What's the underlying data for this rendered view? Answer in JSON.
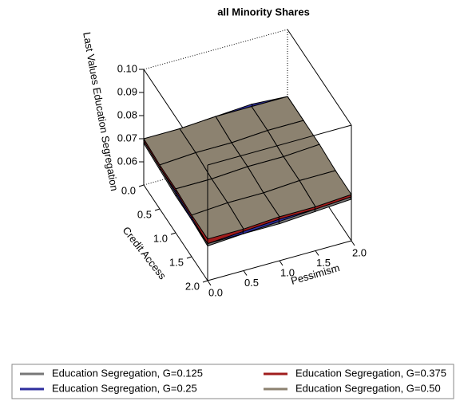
{
  "chart_data": {
    "type": "surface3d",
    "title": "all Minority Shares",
    "xlabel": "Pessimism",
    "ylabel": "Credit Access",
    "zlabel": "Last Values Education Segregation",
    "x": [
      0,
      0.5,
      1,
      1.5,
      2
    ],
    "y": [
      0,
      0.5,
      1,
      1.5,
      2
    ],
    "xlim": [
      0,
      2
    ],
    "ylim": [
      0,
      2
    ],
    "zlim": [
      0.05,
      0.1
    ],
    "xticks": [
      {
        "value": 0,
        "label": "0.0"
      },
      0.5,
      {
        "value": 1,
        "label": "1.0"
      },
      1.5,
      {
        "value": 2,
        "label": "2.0"
      }
    ],
    "yticks": [
      {
        "value": 0,
        "label": "0.0"
      },
      0.5,
      {
        "value": 1,
        "label": "1.0"
      },
      1.5,
      {
        "value": 2,
        "label": "2.0"
      }
    ],
    "zticks": [
      0.06,
      0.07,
      0.08,
      0.09,
      {
        "value": 0.1,
        "label": "0.10"
      }
    ],
    "series": [
      {
        "name": "Education Segregation, G=0.125",
        "color": "#777777",
        "values": [
          [
            0.068,
            0.068,
            0.069,
            0.069,
            0.069
          ],
          [
            0.067,
            0.068,
            0.068,
            0.069,
            0.069
          ],
          [
            0.066,
            0.067,
            0.068,
            0.068,
            0.069
          ],
          [
            0.066,
            0.066,
            0.067,
            0.068,
            0.068
          ],
          [
            0.065,
            0.066,
            0.066,
            0.067,
            0.068
          ]
        ]
      },
      {
        "name": "Education Segregation, G=0.25",
        "color": "#2e2e9e",
        "values": [
          [
            0.069,
            0.07,
            0.071,
            0.072,
            0.071
          ],
          [
            0.068,
            0.069,
            0.07,
            0.071,
            0.071
          ],
          [
            0.067,
            0.068,
            0.069,
            0.07,
            0.07
          ],
          [
            0.066,
            0.067,
            0.068,
            0.069,
            0.07
          ],
          [
            0.066,
            0.066,
            0.067,
            0.068,
            0.069
          ]
        ]
      },
      {
        "name": "Education Segregation, G=0.375",
        "color": "#a01c1c",
        "values": [
          [
            0.069,
            0.07,
            0.07,
            0.071,
            0.071
          ],
          [
            0.068,
            0.069,
            0.07,
            0.07,
            0.071
          ],
          [
            0.068,
            0.068,
            0.069,
            0.07,
            0.07
          ],
          [
            0.067,
            0.068,
            0.068,
            0.069,
            0.07
          ],
          [
            0.066,
            0.067,
            0.068,
            0.068,
            0.069
          ]
        ]
      },
      {
        "name": "Education Segregation, G=0.50",
        "color": "#8c8270",
        "values": [
          [
            0.07,
            0.07,
            0.071,
            0.071,
            0.071
          ],
          [
            0.069,
            0.07,
            0.07,
            0.071,
            0.071
          ],
          [
            0.069,
            0.069,
            0.07,
            0.07,
            0.071
          ],
          [
            0.068,
            0.069,
            0.069,
            0.07,
            0.07
          ],
          [
            0.068,
            0.068,
            0.069,
            0.069,
            0.07
          ]
        ]
      }
    ]
  }
}
